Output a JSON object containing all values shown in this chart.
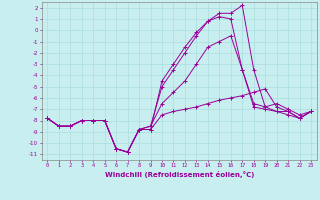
{
  "xlabel": "Windchill (Refroidissement éolien,°C)",
  "x": [
    0,
    1,
    2,
    3,
    4,
    5,
    6,
    7,
    8,
    9,
    10,
    11,
    12,
    13,
    14,
    15,
    16,
    17,
    18,
    19,
    20,
    21,
    22,
    23
  ],
  "line1": [
    -7.8,
    -8.5,
    -8.5,
    -8.0,
    -8.0,
    -8.0,
    -10.5,
    -10.8,
    -8.8,
    -8.8,
    -7.5,
    -7.2,
    -7.0,
    -6.8,
    -6.5,
    -6.2,
    -6.0,
    -5.8,
    -5.5,
    -5.2,
    -6.8,
    -7.2,
    -7.8,
    -7.2
  ],
  "line2": [
    -7.8,
    -8.5,
    -8.5,
    -8.0,
    -8.0,
    -8.0,
    -10.5,
    -10.8,
    -8.8,
    -8.5,
    -6.5,
    -5.5,
    -4.5,
    -3.0,
    -1.5,
    -1.0,
    -0.5,
    -3.5,
    -6.5,
    -6.8,
    -6.5,
    -7.0,
    -7.5,
    -7.2
  ],
  "line3": [
    -7.8,
    -8.5,
    -8.5,
    -8.0,
    -8.0,
    -8.0,
    -10.5,
    -10.8,
    -8.8,
    -8.5,
    -5.0,
    -3.5,
    -2.0,
    -0.5,
    0.8,
    1.2,
    1.0,
    -3.5,
    -6.8,
    -7.0,
    -7.2,
    -7.2,
    -7.8,
    -7.2
  ],
  "line4": [
    -7.8,
    -8.5,
    -8.5,
    -8.0,
    -8.0,
    -8.0,
    -10.5,
    -10.8,
    -8.8,
    -8.8,
    -4.5,
    -3.0,
    -1.5,
    -0.2,
    0.8,
    1.5,
    1.5,
    2.2,
    -3.5,
    -6.8,
    -7.2,
    -7.5,
    -7.8,
    -7.2
  ],
  "bg_color": "#c8eef0",
  "grid_color": "#aadddd",
  "line_color": "#990099",
  "ylim": [
    -11.5,
    2.5
  ],
  "xlim": [
    -0.5,
    23.5
  ],
  "yticks": [
    2,
    1,
    0,
    -1,
    -2,
    -3,
    -4,
    -5,
    -6,
    -7,
    -8,
    -9,
    -10,
    -11
  ],
  "xticks": [
    0,
    1,
    2,
    3,
    4,
    5,
    6,
    7,
    8,
    9,
    10,
    11,
    12,
    13,
    14,
    15,
    16,
    17,
    18,
    19,
    20,
    21,
    22,
    23
  ],
  "figwidth": 3.2,
  "figheight": 2.0,
  "dpi": 100
}
